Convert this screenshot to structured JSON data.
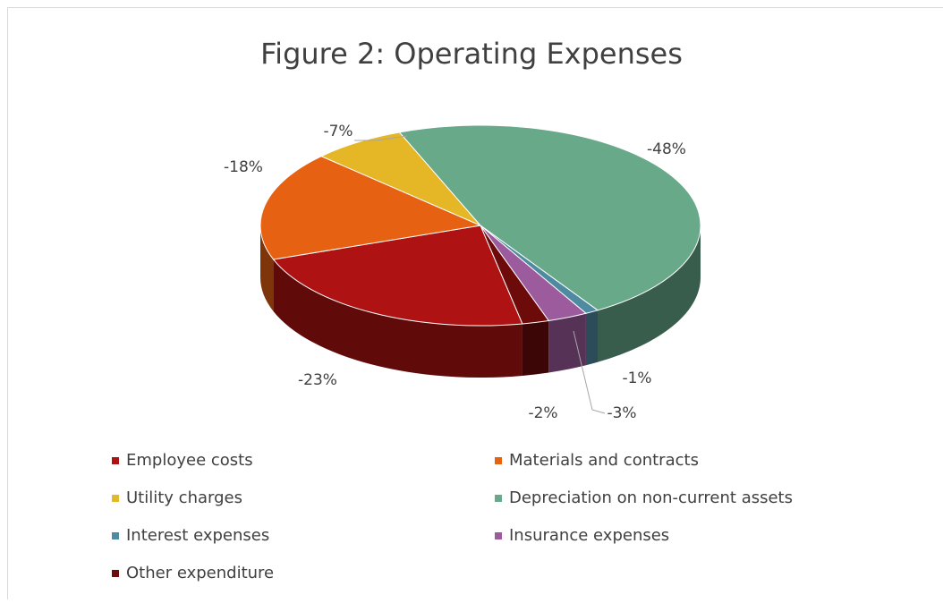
{
  "chart_data": {
    "type": "pie",
    "title": "Figure 2: Operating Expenses",
    "categories": [
      "Employee costs",
      "Materials and contracts",
      "Utility charges",
      "Depreciation on non-current assets",
      "Interest expenses",
      "Insurance expenses",
      "Other expenditure"
    ],
    "values": [
      -23,
      -18,
      -7,
      -48,
      -1,
      -3,
      -2
    ],
    "value_labels": [
      "-23%",
      "-18%",
      "-7%",
      "-48%",
      "-1%",
      "-3%",
      "-2%"
    ],
    "colors": [
      "#ae1212",
      "#e66112",
      "#e5b726",
      "#68a98a",
      "#4e8aa0",
      "#9c5b9c",
      "#6d0a0a"
    ],
    "legend": "bottom"
  }
}
